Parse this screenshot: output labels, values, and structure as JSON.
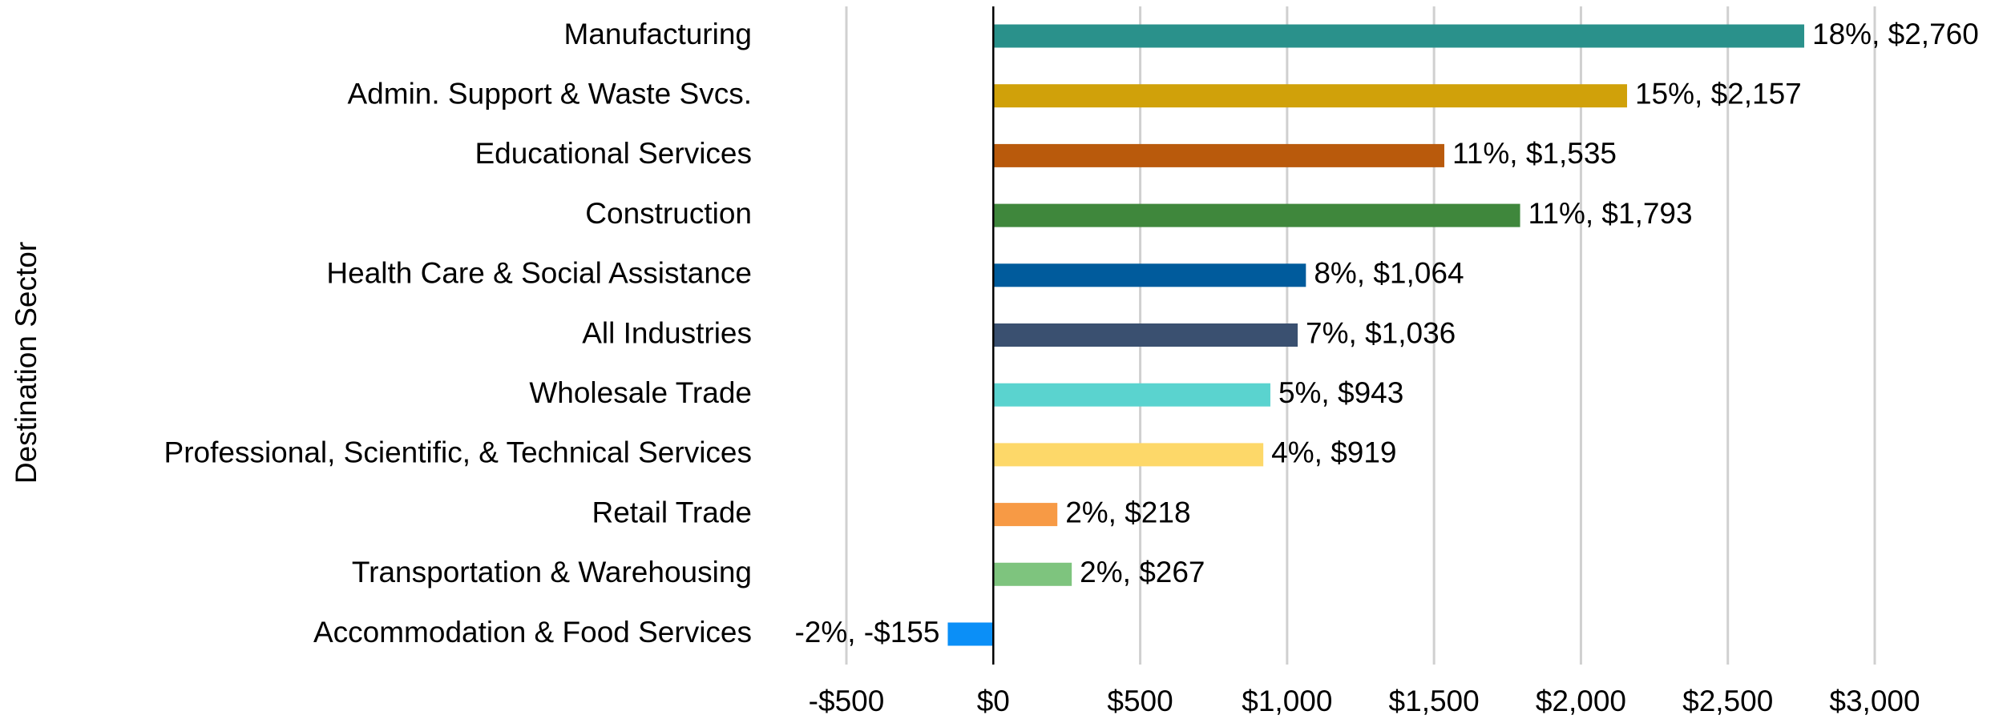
{
  "chart_data": {
    "type": "bar",
    "orientation": "horizontal",
    "ylabel": "Destination Sector",
    "categories": [
      "Manufacturing",
      "Admin. Support & Waste Svcs.",
      "Educational Services",
      "Construction",
      "Health Care & Social Assistance",
      "All Industries",
      "Wholesale Trade",
      "Professional, Scientific, & Technical Services",
      "Retail Trade",
      "Transportation & Warehousing",
      "Accommodation & Food Services"
    ],
    "values": [
      2760,
      2157,
      1535,
      1793,
      1064,
      1036,
      943,
      919,
      218,
      267,
      -155
    ],
    "value_labels": [
      "18%, $2,760",
      "15%, $2,157",
      "11%, $1,535",
      "11%, $1,793",
      "8%, $1,064",
      "7%, $1,036",
      "5%, $943",
      "4%, $919",
      "2%, $218",
      "2%, $267",
      "-2%, -$155"
    ],
    "colors": [
      "#2a918b",
      "#d0a10a",
      "#b95a0c",
      "#3f873c",
      "#005b9c",
      "#3a5070",
      "#5ad3cf",
      "#fdd869",
      "#f79a45",
      "#7ec47e",
      "#0b8ff7"
    ],
    "xlim": [
      -500,
      3000
    ],
    "xticks": [
      {
        "value": -500,
        "label": "-$500"
      },
      {
        "value": 0,
        "label": "$0"
      },
      {
        "value": 500,
        "label": "$500"
      },
      {
        "value": 1000,
        "label": "$1,000"
      },
      {
        "value": 1500,
        "label": "$1,500"
      },
      {
        "value": 2000,
        "label": "$2,000"
      },
      {
        "value": 2500,
        "label": "$2,500"
      },
      {
        "value": 3000,
        "label": "$3,000"
      }
    ],
    "grid": true
  }
}
